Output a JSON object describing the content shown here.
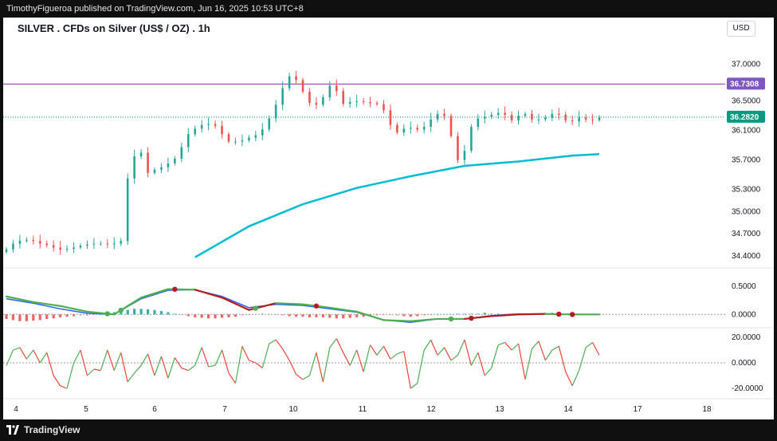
{
  "header": {
    "published": "TimothyFigueroa published on TradingView.com, Jun 16, 2025 10:53 UTC+8",
    "symbol_title": "SILVER . CFDs on Silver (US$ / OZ) . 1h",
    "currency": "USD"
  },
  "footer": {
    "brand": "TradingView"
  },
  "colors": {
    "up": "#26a69a",
    "down": "#ef5350",
    "ma": "#00bcd4",
    "resistance": "#9c27b0",
    "price_badge": "#089981",
    "level_badge": "#7e57c2",
    "macd": "#2962ff",
    "signal": "#b71c1c",
    "macd_cross": "#4caf50",
    "osc_up": "#4caf50",
    "osc_down": "#f44336"
  },
  "chart_data": [
    {
      "type": "candlestick",
      "title": "SILVER . CFDs on Silver (US$ / OZ) . 1h",
      "x_labels": [
        "4",
        "5",
        "6",
        "7",
        "10",
        "11",
        "12",
        "13",
        "14",
        "17",
        "18"
      ],
      "y_ticks": [
        "37.0000",
        "36.5000",
        "36.1000",
        "35.7000",
        "35.3000",
        "35.0000",
        "34.7000",
        "34.4000"
      ],
      "ylim": [
        34.3,
        37.2
      ],
      "resistance_level": 36.7308,
      "resistance_label": "36.7308",
      "last_price": 36.282,
      "last_price_label": "36.2820",
      "price_path": [
        [
          0,
          34.45
        ],
        [
          2,
          34.6
        ],
        [
          4,
          34.62
        ],
        [
          5,
          34.58
        ],
        [
          6,
          34.55
        ],
        [
          7,
          34.54
        ],
        [
          8,
          34.48
        ],
        [
          10,
          34.5
        ],
        [
          12,
          34.55
        ],
        [
          14,
          34.57
        ],
        [
          16,
          34.55
        ],
        [
          17.5,
          34.6
        ],
        [
          18,
          35.3
        ],
        [
          19.5,
          35.75
        ],
        [
          20.5,
          35.8
        ],
        [
          21,
          35.5
        ],
        [
          22,
          35.55
        ],
        [
          24,
          35.62
        ],
        [
          26,
          35.75
        ],
        [
          27,
          36.0
        ],
        [
          28,
          36.1
        ],
        [
          30,
          36.2
        ],
        [
          32,
          36.15
        ],
        [
          33,
          35.95
        ],
        [
          35,
          35.95
        ],
        [
          37,
          36.02
        ],
        [
          38,
          36.05
        ],
        [
          39,
          36.18
        ],
        [
          40,
          36.35
        ],
        [
          41,
          36.55
        ],
        [
          42,
          36.8
        ],
        [
          43,
          36.87
        ],
        [
          44,
          36.7
        ],
        [
          46,
          36.4
        ],
        [
          48,
          36.6
        ],
        [
          49,
          36.82
        ],
        [
          50,
          36.45
        ],
        [
          52,
          36.5
        ],
        [
          54,
          36.48
        ],
        [
          56,
          36.45
        ],
        [
          57,
          36.3
        ],
        [
          58,
          36.05
        ],
        [
          60,
          36.15
        ],
        [
          62,
          36.1
        ],
        [
          64,
          36.3
        ],
        [
          65,
          36.35
        ],
        [
          66,
          36.25
        ],
        [
          67,
          35.8
        ],
        [
          68,
          35.6
        ],
        [
          69,
          36.05
        ],
        [
          70,
          36.25
        ],
        [
          72,
          36.3
        ],
        [
          74,
          36.35
        ],
        [
          76,
          36.2
        ],
        [
          77,
          36.4
        ],
        [
          78,
          36.25
        ],
        [
          80,
          36.25
        ],
        [
          82,
          36.35
        ],
        [
          84,
          36.2
        ],
        [
          85,
          36.25
        ],
        [
          86,
          36.3
        ],
        [
          87,
          36.2
        ],
        [
          88,
          36.28
        ]
      ],
      "ma_path": [
        [
          28,
          34.38
        ],
        [
          36,
          34.8
        ],
        [
          44,
          35.1
        ],
        [
          52,
          35.32
        ],
        [
          60,
          35.48
        ],
        [
          68,
          35.62
        ],
        [
          76,
          35.68
        ],
        [
          84,
          35.76
        ],
        [
          88,
          35.78
        ]
      ]
    },
    {
      "type": "macd",
      "y_ticks": [
        "0.5000",
        "0.0000"
      ],
      "ylim": [
        -0.18,
        0.6
      ],
      "histogram": [
        -0.08,
        -0.1,
        -0.12,
        -0.12,
        -0.11,
        -0.1,
        -0.08,
        -0.07,
        -0.05,
        -0.04,
        -0.03,
        -0.02,
        -0.02,
        -0.01,
        0.0,
        0.02,
        0.04,
        0.06,
        0.08,
        0.1,
        0.1,
        0.09,
        0.08,
        0.06,
        0.04,
        0.02,
        -0.01,
        -0.03,
        -0.05,
        -0.06,
        -0.07,
        -0.07,
        -0.06,
        -0.05,
        -0.04,
        -0.02,
        0.0,
        0.01,
        0.02,
        0.01,
        -0.01,
        -0.02,
        -0.03,
        -0.04,
        -0.04,
        -0.05,
        -0.05,
        -0.05,
        -0.06,
        -0.07,
        -0.07,
        -0.06,
        -0.05,
        -0.04,
        -0.03,
        -0.02,
        -0.01,
        -0.01,
        -0.02,
        -0.03,
        -0.04,
        -0.03,
        -0.02,
        -0.01,
        0.0,
        0.01,
        0.01,
        0.02,
        0.02,
        0.02,
        0.02,
        0.03,
        0.02,
        0.02,
        0.01,
        0.01,
        0.0,
        0.01,
        0.02,
        0.02,
        0.03,
        0.03,
        0.02,
        0.01,
        0.0,
        0.0,
        0.0,
        0.0,
        0.0
      ],
      "macd_path": [
        [
          0,
          0.32
        ],
        [
          4,
          0.22
        ],
        [
          8,
          0.15
        ],
        [
          12,
          0.05
        ],
        [
          16,
          0.0
        ],
        [
          20,
          0.3
        ],
        [
          24,
          0.45
        ],
        [
          28,
          0.44
        ],
        [
          32,
          0.3
        ],
        [
          36,
          0.08
        ],
        [
          40,
          0.2
        ],
        [
          44,
          0.18
        ],
        [
          48,
          0.12
        ],
        [
          52,
          0.05
        ],
        [
          56,
          -0.1
        ],
        [
          60,
          -0.12
        ],
        [
          64,
          -0.08
        ],
        [
          68,
          -0.08
        ],
        [
          72,
          -0.03
        ],
        [
          76,
          0.0
        ],
        [
          80,
          0.01
        ],
        [
          84,
          0.0
        ],
        [
          88,
          0.0
        ]
      ],
      "signal_path": [
        [
          0,
          0.28
        ],
        [
          4,
          0.2
        ],
        [
          8,
          0.1
        ],
        [
          12,
          0.02
        ],
        [
          16,
          0.0
        ],
        [
          20,
          0.28
        ],
        [
          24,
          0.43
        ],
        [
          28,
          0.44
        ],
        [
          32,
          0.32
        ],
        [
          36,
          0.12
        ],
        [
          40,
          0.18
        ],
        [
          44,
          0.16
        ],
        [
          48,
          0.1
        ],
        [
          52,
          0.04
        ],
        [
          56,
          -0.1
        ],
        [
          60,
          -0.14
        ],
        [
          64,
          -0.08
        ],
        [
          68,
          -0.08
        ],
        [
          72,
          -0.02
        ],
        [
          76,
          0.01
        ],
        [
          80,
          0.01
        ],
        [
          84,
          0.0
        ],
        [
          88,
          0.0
        ]
      ],
      "cross_bull": [
        15,
        17,
        37,
        66
      ],
      "cross_bear": [
        25,
        46,
        69,
        82,
        84
      ]
    },
    {
      "type": "oscillator",
      "y_ticks": [
        "20.0000",
        "0.0000",
        "-20.0000"
      ],
      "ylim": [
        -25,
        25
      ],
      "reference_line": 0,
      "values": [
        -2,
        10,
        12,
        3,
        10,
        0,
        8,
        -10,
        -18,
        -20,
        0,
        10,
        -10,
        -5,
        -6,
        10,
        -6,
        8,
        -15,
        -8,
        -2,
        7,
        -10,
        5,
        -12,
        4,
        -4,
        -6,
        -2,
        12,
        -3,
        -2,
        10,
        -8,
        -16,
        13,
        2,
        0,
        -4,
        15,
        18,
        11,
        2,
        -9,
        -13,
        -10,
        8,
        -15,
        12,
        19,
        8,
        -2,
        10,
        -7,
        14,
        6,
        13,
        3,
        7,
        9,
        -20,
        -16,
        10,
        18,
        6,
        12,
        2,
        6,
        18,
        -2,
        8,
        -10,
        -4,
        14,
        16,
        10,
        15,
        -13,
        11,
        17,
        2,
        10,
        13,
        -7,
        -18,
        -6,
        12,
        16,
        6
      ]
    }
  ]
}
